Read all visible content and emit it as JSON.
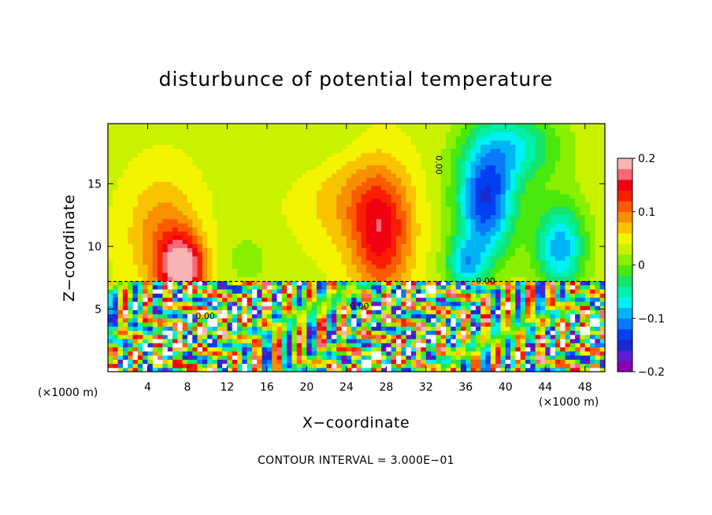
{
  "chart_data": {
    "type": "heatmap",
    "title": "disturbunce of potential temperature",
    "xlabel": "X−coordinate",
    "ylabel": "Z−coordinate",
    "x_unit_left": "(×1000 m)",
    "x_unit_right": "(×1000 m)",
    "xlim": [
      0,
      50
    ],
    "ylim": [
      0,
      19.8
    ],
    "x_ticks": [
      4,
      8,
      12,
      16,
      20,
      24,
      28,
      32,
      36,
      40,
      44,
      48
    ],
    "y_ticks": [
      5,
      10,
      15
    ],
    "colorbar": {
      "range": [
        -0.2,
        0.2
      ],
      "ticks": [
        {
          "value": 0.2,
          "label": "0.2"
        },
        {
          "value": 0.1,
          "label": "0.1"
        },
        {
          "value": 0.0,
          "label": "0"
        },
        {
          "value": -0.1,
          "label": "−0.1"
        },
        {
          "value": -0.2,
          "label": "−0.2"
        }
      ],
      "colors": [
        "#8800b0",
        "#5a1fd0",
        "#1a2ad0",
        "#0040f0",
        "#0a78f8",
        "#00b4f4",
        "#00f0f4",
        "#00f0a8",
        "#16e46a",
        "#4ae80c",
        "#88f000",
        "#c8f200",
        "#f4f400",
        "#f8c400",
        "#f89000",
        "#fa5a00",
        "#fa1e00",
        "#f00010",
        "#f86878",
        "#f8b4b4"
      ]
    },
    "contour_labels": [
      {
        "x": 33.0,
        "y": 16.5,
        "text": "0.00"
      },
      {
        "x": 38.0,
        "y": 7.0,
        "text": "0.00"
      },
      {
        "x": 9.8,
        "y": 4.2,
        "text": "0.00"
      },
      {
        "x": 25.3,
        "y": 5.0,
        "text": "0.00"
      }
    ],
    "contour_interval_text": "CONTOUR INTERVAL = 3.000E−01",
    "upper_field_blobs": [
      {
        "x": 7.5,
        "z": 8.2,
        "sx": 2.2,
        "sz": 2.6,
        "a": 0.17
      },
      {
        "x": 5.5,
        "z": 11.0,
        "sx": 3.5,
        "sz": 4.5,
        "a": 0.06
      },
      {
        "x": 14.0,
        "z": 9.0,
        "sx": 3.5,
        "sz": 3.0,
        "a": -0.02
      },
      {
        "x": 27.5,
        "z": 11.0,
        "sx": 3.0,
        "sz": 5.0,
        "a": 0.11
      },
      {
        "x": 24.0,
        "z": 14.0,
        "sx": 5.0,
        "sz": 4.0,
        "a": 0.04
      },
      {
        "x": 20.0,
        "z": 18.0,
        "sx": 6.0,
        "sz": 3.0,
        "a": -0.02
      },
      {
        "x": 38.0,
        "z": 13.5,
        "sx": 3.0,
        "sz": 4.5,
        "a": -0.17
      },
      {
        "x": 45.5,
        "z": 10.0,
        "sx": 2.5,
        "sz": 3.5,
        "a": -0.13
      },
      {
        "x": 41.0,
        "z": 18.0,
        "sx": 4.5,
        "sz": 3.0,
        "a": -0.09
      },
      {
        "x": 36.0,
        "z": 8.5,
        "sx": 2.0,
        "sz": 2.0,
        "a": -0.1
      }
    ],
    "boundary_level_z": 7.2
  }
}
